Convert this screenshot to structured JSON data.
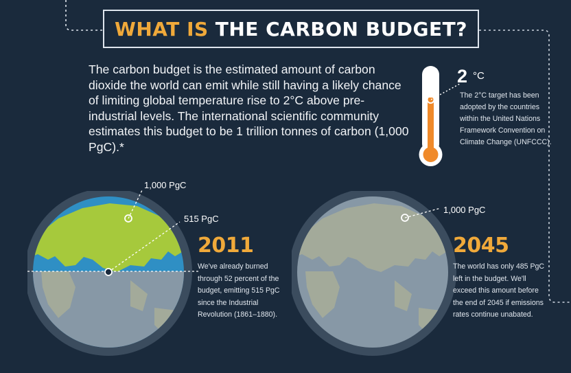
{
  "title": {
    "part1": "WHAT IS",
    "part2": "THE CARBON BUDGET?"
  },
  "intro": "The carbon budget is the estimated amount of carbon dioxide the world can emit while still having a likely chance of limiting global temperature rise to 2°C above pre-industrial levels. The international scientific community estimates this budget to be 1 trillion tonnes of carbon (1,000 PgC).*",
  "thermometer": {
    "value": "2",
    "unit": "°C",
    "note": "The 2°C target has been adopted by the countries within the United Nations Framework Convention on Climate Change (UNFCCC)."
  },
  "globe_2011": {
    "label_total": "1,000 PgC",
    "label_emitted": "515 PgC",
    "year": "2011",
    "description": "We've already burned through 52 percent of the budget, emitting 515 PgC since the Industrial Revolution (1861–1880).",
    "percent_used": 52
  },
  "globe_2045": {
    "label_total": "1,000 PgC",
    "year": "2045",
    "description": "The world has only 485 PgC left in the budget. We'll exceed this amount before the end of 2045 if emissions rates continue unabated."
  },
  "colors": {
    "background": "#1a2a3c",
    "accent_orange": "#f0a93a",
    "budget_green": "#a6c93c",
    "ocean_blue": "#2f8fc4",
    "globe_grey": "#8798a6",
    "land_grey": "#a3aa9a",
    "thermometer_orange": "#f08a2a"
  }
}
